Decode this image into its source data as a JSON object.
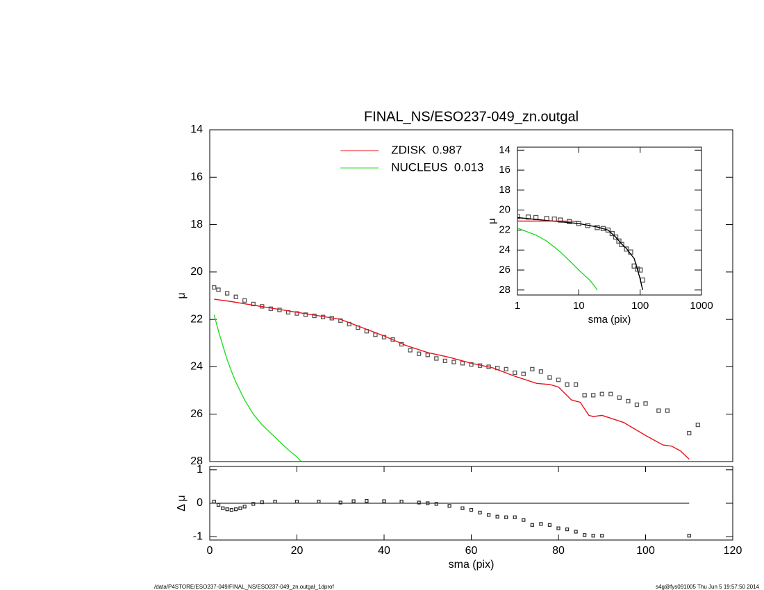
{
  "chart_data": [
    {
      "type": "line",
      "title": "FINAL_NS/ESO237-049_zn.outgal",
      "ylabel": "μ",
      "xlim": [
        0,
        120
      ],
      "ylim": [
        28,
        14
      ],
      "yticks": [
        14,
        16,
        18,
        20,
        22,
        24,
        26,
        28
      ],
      "legend": "upper-center",
      "series": [
        {
          "style": "markers",
          "color": "#555555",
          "x": [
            1,
            2,
            4,
            6,
            8,
            10,
            12,
            14,
            16,
            18,
            20,
            22,
            24,
            26,
            28,
            30,
            32,
            34,
            36,
            38,
            40,
            42,
            44,
            46,
            48,
            50,
            52,
            54,
            56,
            58,
            60,
            62,
            64,
            66,
            68,
            70,
            72,
            74,
            76,
            78,
            80,
            82,
            84,
            86,
            88,
            90,
            92,
            94,
            96,
            98,
            100,
            103,
            105,
            110,
            112
          ],
          "values": [
            20.65,
            20.75,
            20.9,
            21.05,
            21.2,
            21.35,
            21.45,
            21.55,
            21.6,
            21.7,
            21.75,
            21.8,
            21.85,
            21.9,
            21.95,
            22.05,
            22.2,
            22.35,
            22.5,
            22.65,
            22.75,
            22.85,
            23.05,
            23.3,
            23.45,
            23.5,
            23.65,
            23.75,
            23.8,
            23.85,
            23.9,
            23.95,
            24.0,
            24.05,
            24.1,
            24.25,
            24.3,
            24.1,
            24.2,
            24.45,
            24.55,
            24.75,
            24.75,
            25.2,
            25.2,
            25.15,
            25.15,
            25.3,
            25.45,
            25.6,
            25.55,
            25.85,
            25.85,
            26.8,
            26.45
          ]
        },
        {
          "name": "ZDISK  0.987",
          "style": "line",
          "color": "#e8141e",
          "x": [
            1,
            5,
            10,
            20,
            30,
            40,
            45,
            50,
            55,
            60,
            65,
            70,
            75,
            78,
            80,
            83,
            85,
            87,
            88,
            90,
            95,
            100,
            104,
            106,
            108,
            110
          ],
          "values": [
            21.15,
            21.25,
            21.4,
            21.7,
            22.0,
            22.7,
            23.1,
            23.4,
            23.6,
            23.85,
            24.05,
            24.4,
            24.7,
            24.75,
            24.85,
            25.4,
            25.5,
            26.05,
            26.1,
            26.05,
            26.35,
            26.9,
            27.3,
            27.35,
            27.55,
            27.9
          ]
        },
        {
          "name": "NUCLEUS  0.013",
          "style": "line",
          "color": "#22dd22",
          "x": [
            1,
            2,
            3,
            4,
            5,
            6,
            8,
            10,
            12,
            14,
            16,
            18,
            20,
            21
          ],
          "values": [
            21.8,
            22.5,
            23.1,
            23.7,
            24.2,
            24.65,
            25.4,
            26.0,
            26.45,
            26.8,
            27.15,
            27.5,
            27.8,
            28.0
          ]
        }
      ]
    },
    {
      "type": "line",
      "ylabel": "μ",
      "xlabel": "sma (pix)",
      "xlog": true,
      "xlim": [
        1,
        1000
      ],
      "xticks": [
        1,
        10,
        100,
        1000
      ],
      "ylim": [
        28.5,
        13.7
      ],
      "yticks": [
        14,
        16,
        18,
        20,
        22,
        24,
        26,
        28
      ],
      "series": [
        {
          "style": "markers",
          "color": "#555555",
          "x": [
            1,
            1.5,
            2,
            3,
            4,
            5,
            7,
            10,
            14,
            20,
            25,
            30,
            35,
            40,
            45,
            50,
            60,
            70,
            80,
            90,
            100,
            110
          ],
          "values": [
            20.65,
            20.7,
            20.75,
            20.85,
            20.9,
            21.0,
            21.15,
            21.35,
            21.55,
            21.75,
            21.85,
            22.0,
            22.35,
            22.7,
            23.1,
            23.45,
            23.9,
            24.2,
            25.6,
            25.9,
            26.0,
            27.0
          ]
        },
        {
          "style": "line",
          "color": "#000000",
          "x": [
            1,
            10,
            20,
            30,
            40,
            50,
            60,
            70,
            80,
            90,
            100,
            110
          ],
          "values": [
            20.75,
            21.35,
            21.7,
            22.0,
            22.7,
            23.4,
            23.85,
            24.4,
            24.85,
            25.9,
            26.9,
            28.0
          ]
        },
        {
          "style": "line",
          "color": "#e8141e",
          "x": [
            1,
            2,
            5,
            10
          ],
          "values": [
            21.1,
            21.1,
            21.1,
            21.12
          ]
        },
        {
          "style": "line",
          "color": "#22dd22",
          "x": [
            1,
            2,
            3,
            4,
            5,
            6,
            8,
            10,
            12,
            15,
            18,
            20
          ],
          "values": [
            21.8,
            22.5,
            23.1,
            23.7,
            24.2,
            24.65,
            25.4,
            26.0,
            26.45,
            27.0,
            27.6,
            28.0
          ]
        }
      ]
    },
    {
      "type": "line",
      "ylabel": "Δ μ",
      "xlabel": "sma (pix)",
      "zero_line": true,
      "xlim": [
        0,
        120
      ],
      "xticks": [
        0,
        20,
        40,
        60,
        80,
        100,
        120
      ],
      "ylim": [
        -1.1,
        1.1
      ],
      "yticks": [
        -1,
        0,
        1
      ],
      "series": [
        {
          "style": "markers",
          "color": "#333333",
          "x": [
            1,
            2,
            3,
            4,
            5,
            6,
            7,
            8,
            10,
            12,
            15,
            20,
            25,
            30,
            33,
            36,
            40,
            44,
            48,
            50,
            52,
            55,
            58,
            60,
            62,
            64,
            66,
            68,
            70,
            72,
            74,
            76,
            78,
            80,
            82,
            84,
            86,
            88,
            90,
            110
          ],
          "values": [
            0.05,
            -0.05,
            -0.15,
            -0.18,
            -0.2,
            -0.18,
            -0.15,
            -0.1,
            -0.02,
            0.03,
            0.05,
            0.05,
            0.05,
            0.02,
            0.06,
            0.07,
            0.06,
            0.05,
            0.02,
            0.0,
            -0.02,
            -0.08,
            -0.15,
            -0.2,
            -0.28,
            -0.35,
            -0.4,
            -0.42,
            -0.42,
            -0.5,
            -0.65,
            -0.62,
            -0.65,
            -0.75,
            -0.78,
            -0.85,
            -0.95,
            -0.97,
            -0.97,
            -0.97
          ]
        }
      ]
    }
  ],
  "footer": {
    "left": "/data/P4STORE/ESO237-049/FINAL_NS/ESO237-049_zn.outgal_1dprof",
    "right": "s4g@fys091005  Thu Jun  5 19:57:50 2014"
  }
}
